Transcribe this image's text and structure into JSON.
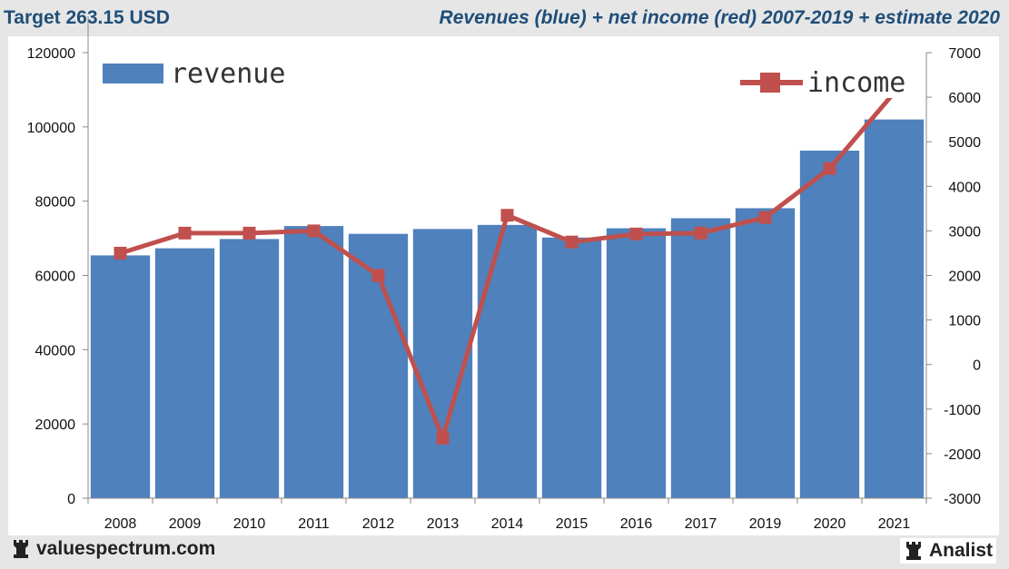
{
  "header": {
    "left_title": "Target 263.15 USD",
    "right_title": "Revenues (blue) + net income (red) 2007-2019 + estimate 2020"
  },
  "footer": {
    "left_brand": "valuespectrum.com",
    "right_brand": "Analist",
    "brand_icon": "chess-rook-icon"
  },
  "colors": {
    "revenue_bar": "#4f81bd",
    "income_line": "#c0504d",
    "header_text": "#1f4e79"
  },
  "chart_data": {
    "type": "bar",
    "categories": [
      "2008",
      "2009",
      "2010",
      "2011",
      "2012",
      "2013",
      "2014",
      "2015",
      "2016",
      "2017",
      "2019",
      "2020",
      "2021"
    ],
    "series": [
      {
        "name": "revenue",
        "type": "bar",
        "axis": "left",
        "values": [
          65400,
          67300,
          69800,
          73300,
          71200,
          72500,
          73600,
          70200,
          72700,
          75400,
          78100,
          93600,
          102000
        ]
      },
      {
        "name": "income",
        "type": "line",
        "axis": "right",
        "values": [
          2500,
          2950,
          2950,
          3000,
          2000,
          -1650,
          3350,
          2750,
          2930,
          2950,
          3300,
          4400,
          6100
        ]
      }
    ],
    "left_axis": {
      "ylim": [
        0,
        120000
      ],
      "ticks": [
        "0",
        "20000",
        "40000",
        "60000",
        "80000",
        "100000",
        "120000"
      ]
    },
    "right_axis": {
      "ylim": [
        -3000,
        7000
      ],
      "ticks": [
        "-3000",
        "-2000",
        "-1000",
        "0",
        "1000",
        "2000",
        "3000",
        "4000",
        "5000",
        "6000",
        "7000"
      ]
    },
    "grid": false,
    "legend": [
      "revenue",
      "income"
    ]
  }
}
